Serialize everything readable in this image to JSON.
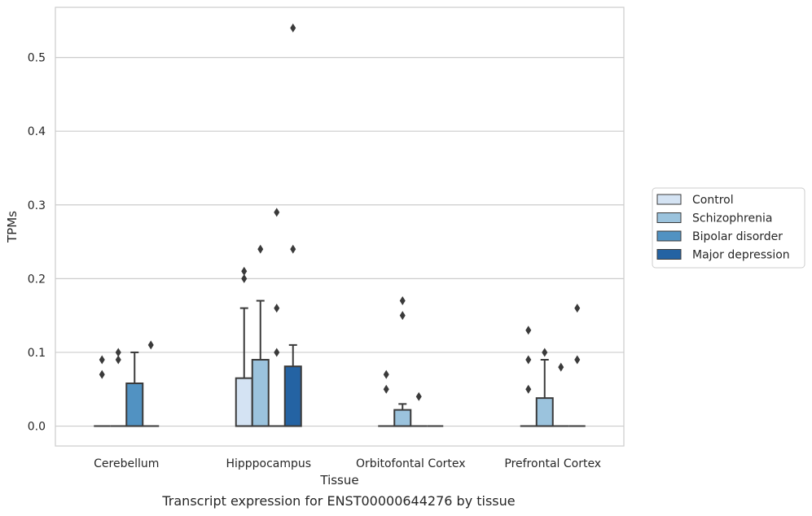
{
  "caption": "Transcript expression for ENST00000644276 by tissue",
  "chart_data": {
    "type": "box",
    "xlabel": "Tissue",
    "ylabel": "TPMs",
    "ylim": [
      -0.027,
      0.568
    ],
    "yticks": [
      0.0,
      0.1,
      0.2,
      0.3,
      0.4,
      0.5
    ],
    "ytick_labels": [
      "0.0",
      "0.1",
      "0.2",
      "0.3",
      "0.4",
      "0.5"
    ],
    "grid": "horizontal",
    "legend_position": "right",
    "categories": [
      "Cerebellum",
      "Hipppocampus",
      "Orbitofontal Cortex",
      "Prefrontal Cortex"
    ],
    "series": [
      {
        "name": "Control",
        "color": "#d4e3f3",
        "boxes": [
          {
            "q1": 0,
            "median": 0,
            "q3": 0,
            "whisker_low": 0,
            "whisker_high": 0,
            "outliers": [
              0.07,
              0.09
            ]
          },
          {
            "q1": 0,
            "median": 0,
            "q3": 0.065,
            "whisker_low": 0,
            "whisker_high": 0.16,
            "outliers": [
              0.2,
              0.21
            ]
          },
          {
            "q1": 0,
            "median": 0,
            "q3": 0,
            "whisker_low": 0,
            "whisker_high": 0,
            "outliers": [
              0.05,
              0.07
            ]
          },
          {
            "q1": 0,
            "median": 0,
            "q3": 0,
            "whisker_low": 0,
            "whisker_high": 0,
            "outliers": [
              0.05,
              0.09,
              0.13
            ]
          }
        ]
      },
      {
        "name": "Schizophrenia",
        "color": "#9bc3dd",
        "boxes": [
          {
            "q1": 0,
            "median": 0,
            "q3": 0,
            "whisker_low": 0,
            "whisker_high": 0,
            "outliers": [
              0.09,
              0.1
            ]
          },
          {
            "q1": 0,
            "median": 0,
            "q3": 0.09,
            "whisker_low": 0,
            "whisker_high": 0.17,
            "outliers": [
              0.24
            ]
          },
          {
            "q1": 0,
            "median": 0,
            "q3": 0.022,
            "whisker_low": 0,
            "whisker_high": 0.03,
            "outliers": [
              0.15,
              0.17
            ]
          },
          {
            "q1": 0,
            "median": 0,
            "q3": 0.038,
            "whisker_low": 0,
            "whisker_high": 0.09,
            "outliers": [
              0.1
            ]
          }
        ]
      },
      {
        "name": "Bipolar disorder",
        "color": "#5192c2",
        "boxes": [
          {
            "q1": 0,
            "median": 0,
            "q3": 0.058,
            "whisker_low": 0,
            "whisker_high": 0.1,
            "outliers": []
          },
          {
            "q1": 0,
            "median": 0,
            "q3": 0,
            "whisker_low": 0,
            "whisker_high": 0,
            "outliers": [
              0.1,
              0.16,
              0.29
            ]
          },
          {
            "q1": 0,
            "median": 0,
            "q3": 0,
            "whisker_low": 0,
            "whisker_high": 0,
            "outliers": [
              0.04
            ]
          },
          {
            "q1": 0,
            "median": 0,
            "q3": 0,
            "whisker_low": 0,
            "whisker_high": 0,
            "outliers": [
              0.08
            ]
          }
        ]
      },
      {
        "name": "Major depression",
        "color": "#2463a3",
        "boxes": [
          {
            "q1": 0,
            "median": 0,
            "q3": 0,
            "whisker_low": 0,
            "whisker_high": 0,
            "outliers": [
              0.11
            ]
          },
          {
            "q1": 0,
            "median": 0,
            "q3": 0.081,
            "whisker_low": 0,
            "whisker_high": 0.11,
            "outliers": [
              0.24,
              0.54
            ]
          },
          {
            "q1": 0,
            "median": 0,
            "q3": 0,
            "whisker_low": 0,
            "whisker_high": 0,
            "outliers": []
          },
          {
            "q1": 0,
            "median": 0,
            "q3": 0,
            "whisker_low": 0,
            "whisker_high": 0,
            "outliers": [
              0.09,
              0.16
            ]
          }
        ]
      }
    ]
  }
}
